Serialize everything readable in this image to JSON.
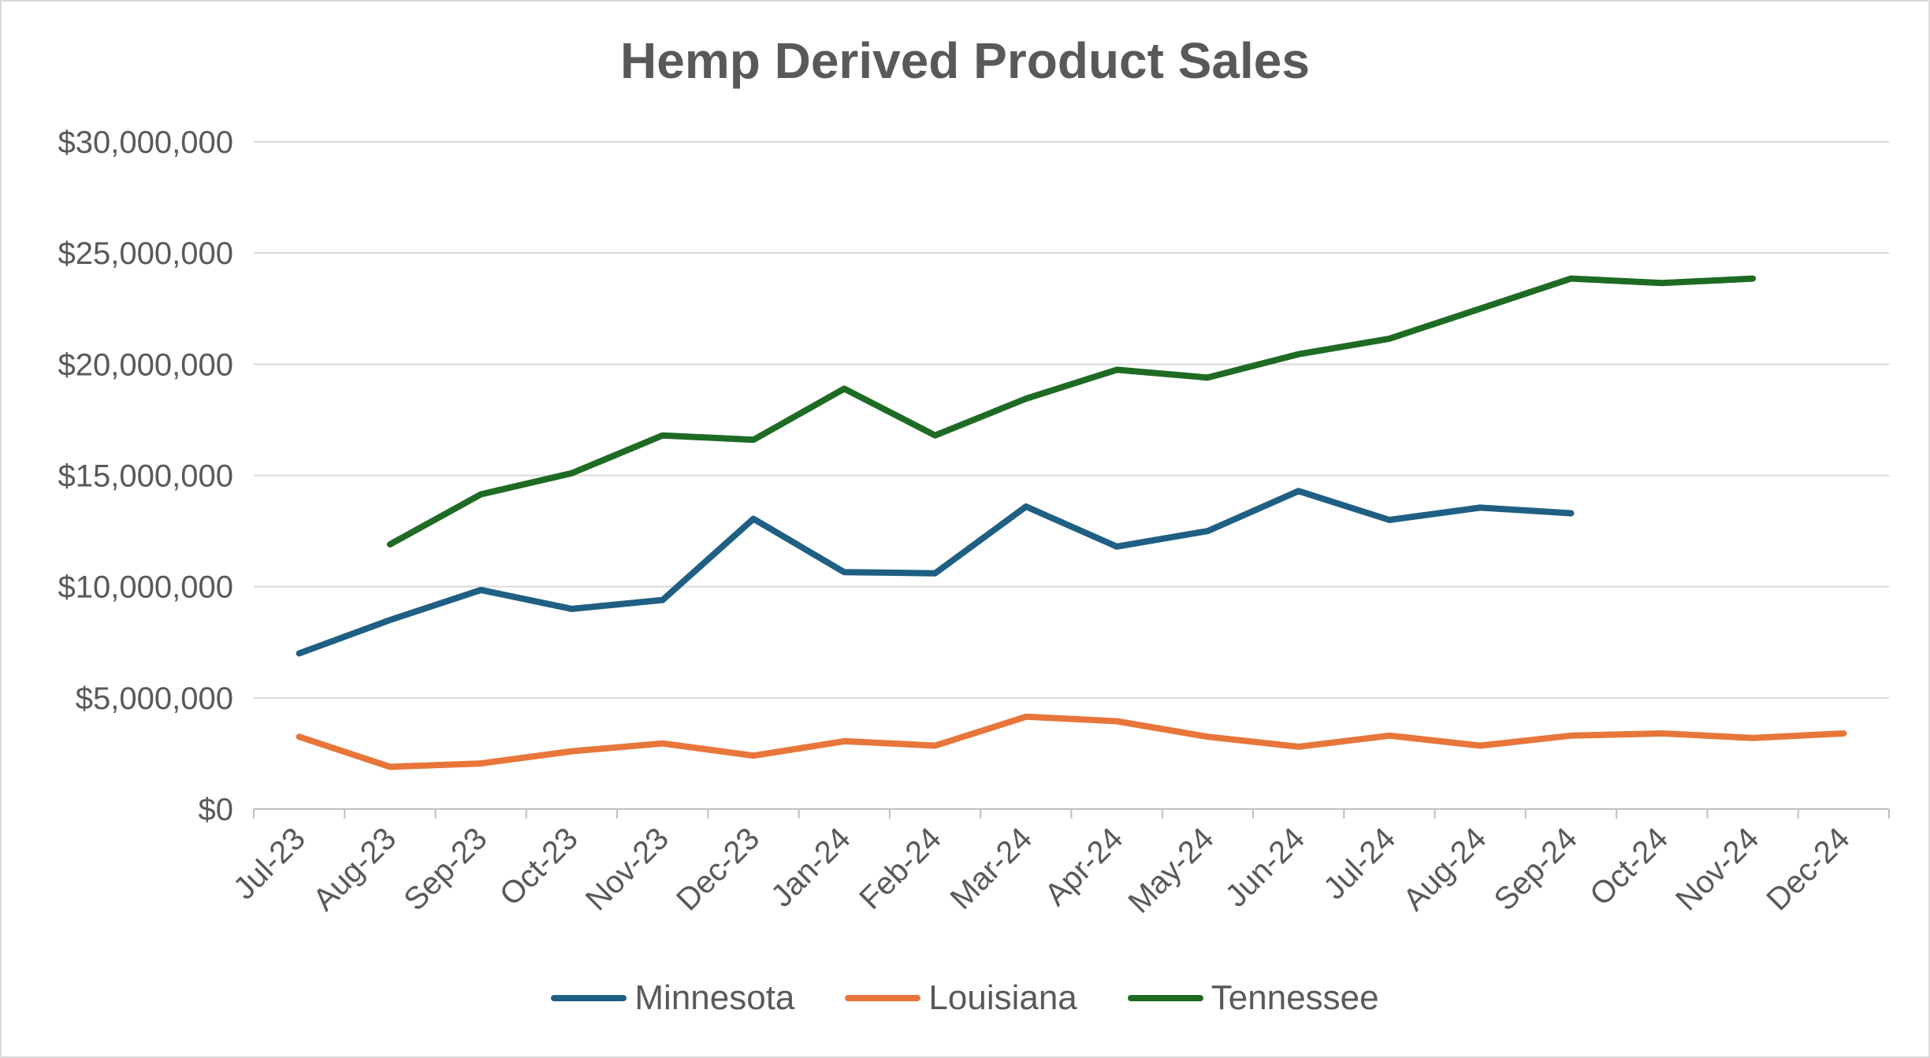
{
  "chart_data": {
    "type": "line",
    "title": "Hemp Derived Product Sales",
    "categories": [
      "Jul-23",
      "Aug-23",
      "Sep-23",
      "Oct-23",
      "Nov-23",
      "Dec-23",
      "Jan-24",
      "Feb-24",
      "Mar-24",
      "Apr-24",
      "May-24",
      "Jun-24",
      "Jul-24",
      "Aug-24",
      "Sep-24",
      "Oct-24",
      "Nov-24",
      "Dec-24"
    ],
    "ylim": [
      0,
      30000000
    ],
    "yticks": [
      0,
      5000000,
      10000000,
      15000000,
      20000000,
      25000000,
      30000000
    ],
    "ytick_labels": [
      "$0",
      "$5,000,000",
      "$10,000,000",
      "$15,000,000",
      "$20,000,000",
      "$25,000,000",
      "$30,000,000"
    ],
    "grid": true,
    "legend_position": "bottom",
    "series": [
      {
        "name": "Minnesota",
        "color": "#1f5f83",
        "values": [
          7000000,
          8500000,
          9850000,
          9000000,
          9400000,
          13050000,
          10650000,
          10600000,
          13600000,
          11800000,
          12500000,
          14300000,
          13000000,
          13550000,
          13300000,
          null,
          null,
          null
        ]
      },
      {
        "name": "Louisiana",
        "color": "#e8763a",
        "values": [
          3250000,
          1900000,
          2050000,
          2600000,
          2950000,
          2400000,
          3050000,
          2850000,
          4150000,
          3950000,
          3250000,
          2800000,
          3300000,
          2850000,
          3300000,
          3400000,
          3200000,
          3400000
        ]
      },
      {
        "name": "Tennessee",
        "color": "#1e6b23",
        "values": [
          null,
          11900000,
          14150000,
          15100000,
          16800000,
          16600000,
          18900000,
          16800000,
          18450000,
          19750000,
          19400000,
          20450000,
          21150000,
          22500000,
          23850000,
          23650000,
          23850000,
          null
        ]
      }
    ]
  }
}
